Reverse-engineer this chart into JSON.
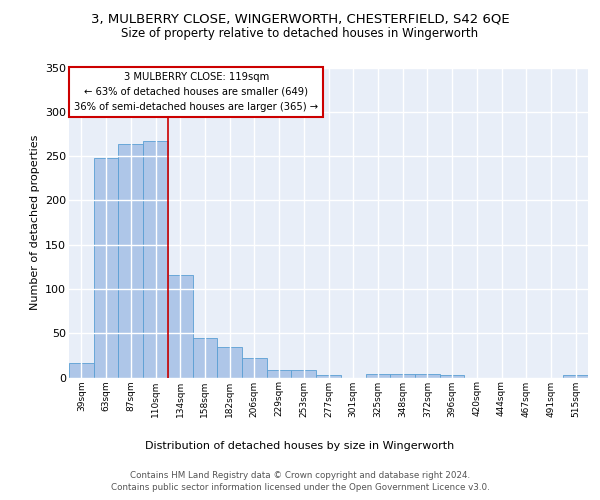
{
  "title_line1": "3, MULBERRY CLOSE, WINGERWORTH, CHESTERFIELD, S42 6QE",
  "title_line2": "Size of property relative to detached houses in Wingerworth",
  "xlabel": "Distribution of detached houses by size in Wingerworth",
  "ylabel": "Number of detached properties",
  "categories": [
    "39sqm",
    "63sqm",
    "87sqm",
    "110sqm",
    "134sqm",
    "158sqm",
    "182sqm",
    "206sqm",
    "229sqm",
    "253sqm",
    "277sqm",
    "301sqm",
    "325sqm",
    "348sqm",
    "372sqm",
    "396sqm",
    "420sqm",
    "444sqm",
    "467sqm",
    "491sqm",
    "515sqm"
  ],
  "values": [
    16,
    248,
    264,
    267,
    116,
    45,
    35,
    22,
    8,
    8,
    3,
    0,
    4,
    4,
    4,
    3,
    0,
    0,
    0,
    0,
    3
  ],
  "bar_color": "#aec6e8",
  "bar_edge_color": "#5a9fd4",
  "property_label": "3 MULBERRY CLOSE: 119sqm",
  "stat_line1": "← 63% of detached houses are smaller (649)",
  "stat_line2": "36% of semi-detached houses are larger (365) →",
  "vline_color": "#cc0000",
  "vline_position": 3.5,
  "ylim": [
    0,
    350
  ],
  "yticks": [
    0,
    50,
    100,
    150,
    200,
    250,
    300,
    350
  ],
  "background_color": "#e8eef8",
  "grid_color": "#ffffff",
  "footer_line1": "Contains HM Land Registry data © Crown copyright and database right 2024.",
  "footer_line2": "Contains public sector information licensed under the Open Government Licence v3.0."
}
